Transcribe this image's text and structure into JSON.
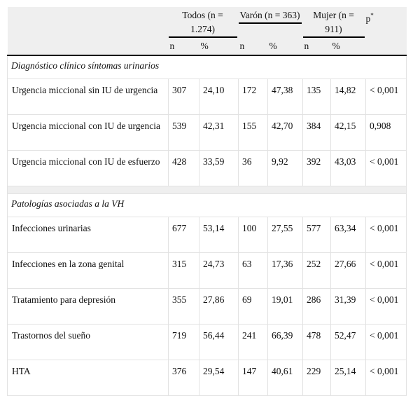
{
  "header": {
    "groups": [
      "Todos (n = 1.274)",
      "Varón (n = 363)",
      "Mujer (n = 911)"
    ],
    "p": "p",
    "p_note": "*",
    "subheaders": [
      "n",
      "%",
      "n",
      "%",
      "n",
      "%"
    ]
  },
  "sections": [
    {
      "title": "Diagnóstico clínico síntomas urinarios",
      "rows": [
        {
          "label": "Urgencia miccional sin IU de urgencia",
          "cells": [
            "307",
            "24,10",
            "172",
            "47,38",
            "135",
            "14,82",
            "< 0,001"
          ]
        },
        {
          "label": "Urgencia miccional con IU de urgencia",
          "cells": [
            "539",
            "42,31",
            "155",
            "42,70",
            "384",
            "42,15",
            "0,908"
          ]
        },
        {
          "label": "Urgencia miccional con IU de esfuerzo",
          "cells": [
            "428",
            "33,59",
            "36",
            "9,92",
            "392",
            "43,03",
            "< 0,001"
          ]
        }
      ]
    },
    {
      "title": "Patologías asociadas a la VH",
      "rows": [
        {
          "label": "Infecciones urinarias",
          "cells": [
            "677",
            "53,14",
            "100",
            "27,55",
            "577",
            "63,34",
            "< 0,001"
          ]
        },
        {
          "label": "Infecciones en la zona genital",
          "cells": [
            "315",
            "24,73",
            "63",
            "17,36",
            "252",
            "27,66",
            "< 0,001"
          ]
        },
        {
          "label": "Tratamiento para depresión",
          "cells": [
            "355",
            "27,86",
            "69",
            "19,01",
            "286",
            "31,39",
            "< 0,001"
          ]
        },
        {
          "label": "Trastornos del sueño",
          "cells": [
            "719",
            "56,44",
            "241",
            "66,39",
            "478",
            "52,47",
            "< 0,001"
          ]
        },
        {
          "label": "HTA",
          "cells": [
            "376",
            "29,54",
            "147",
            "40,61",
            "229",
            "25,14",
            "< 0,001"
          ]
        }
      ]
    }
  ]
}
